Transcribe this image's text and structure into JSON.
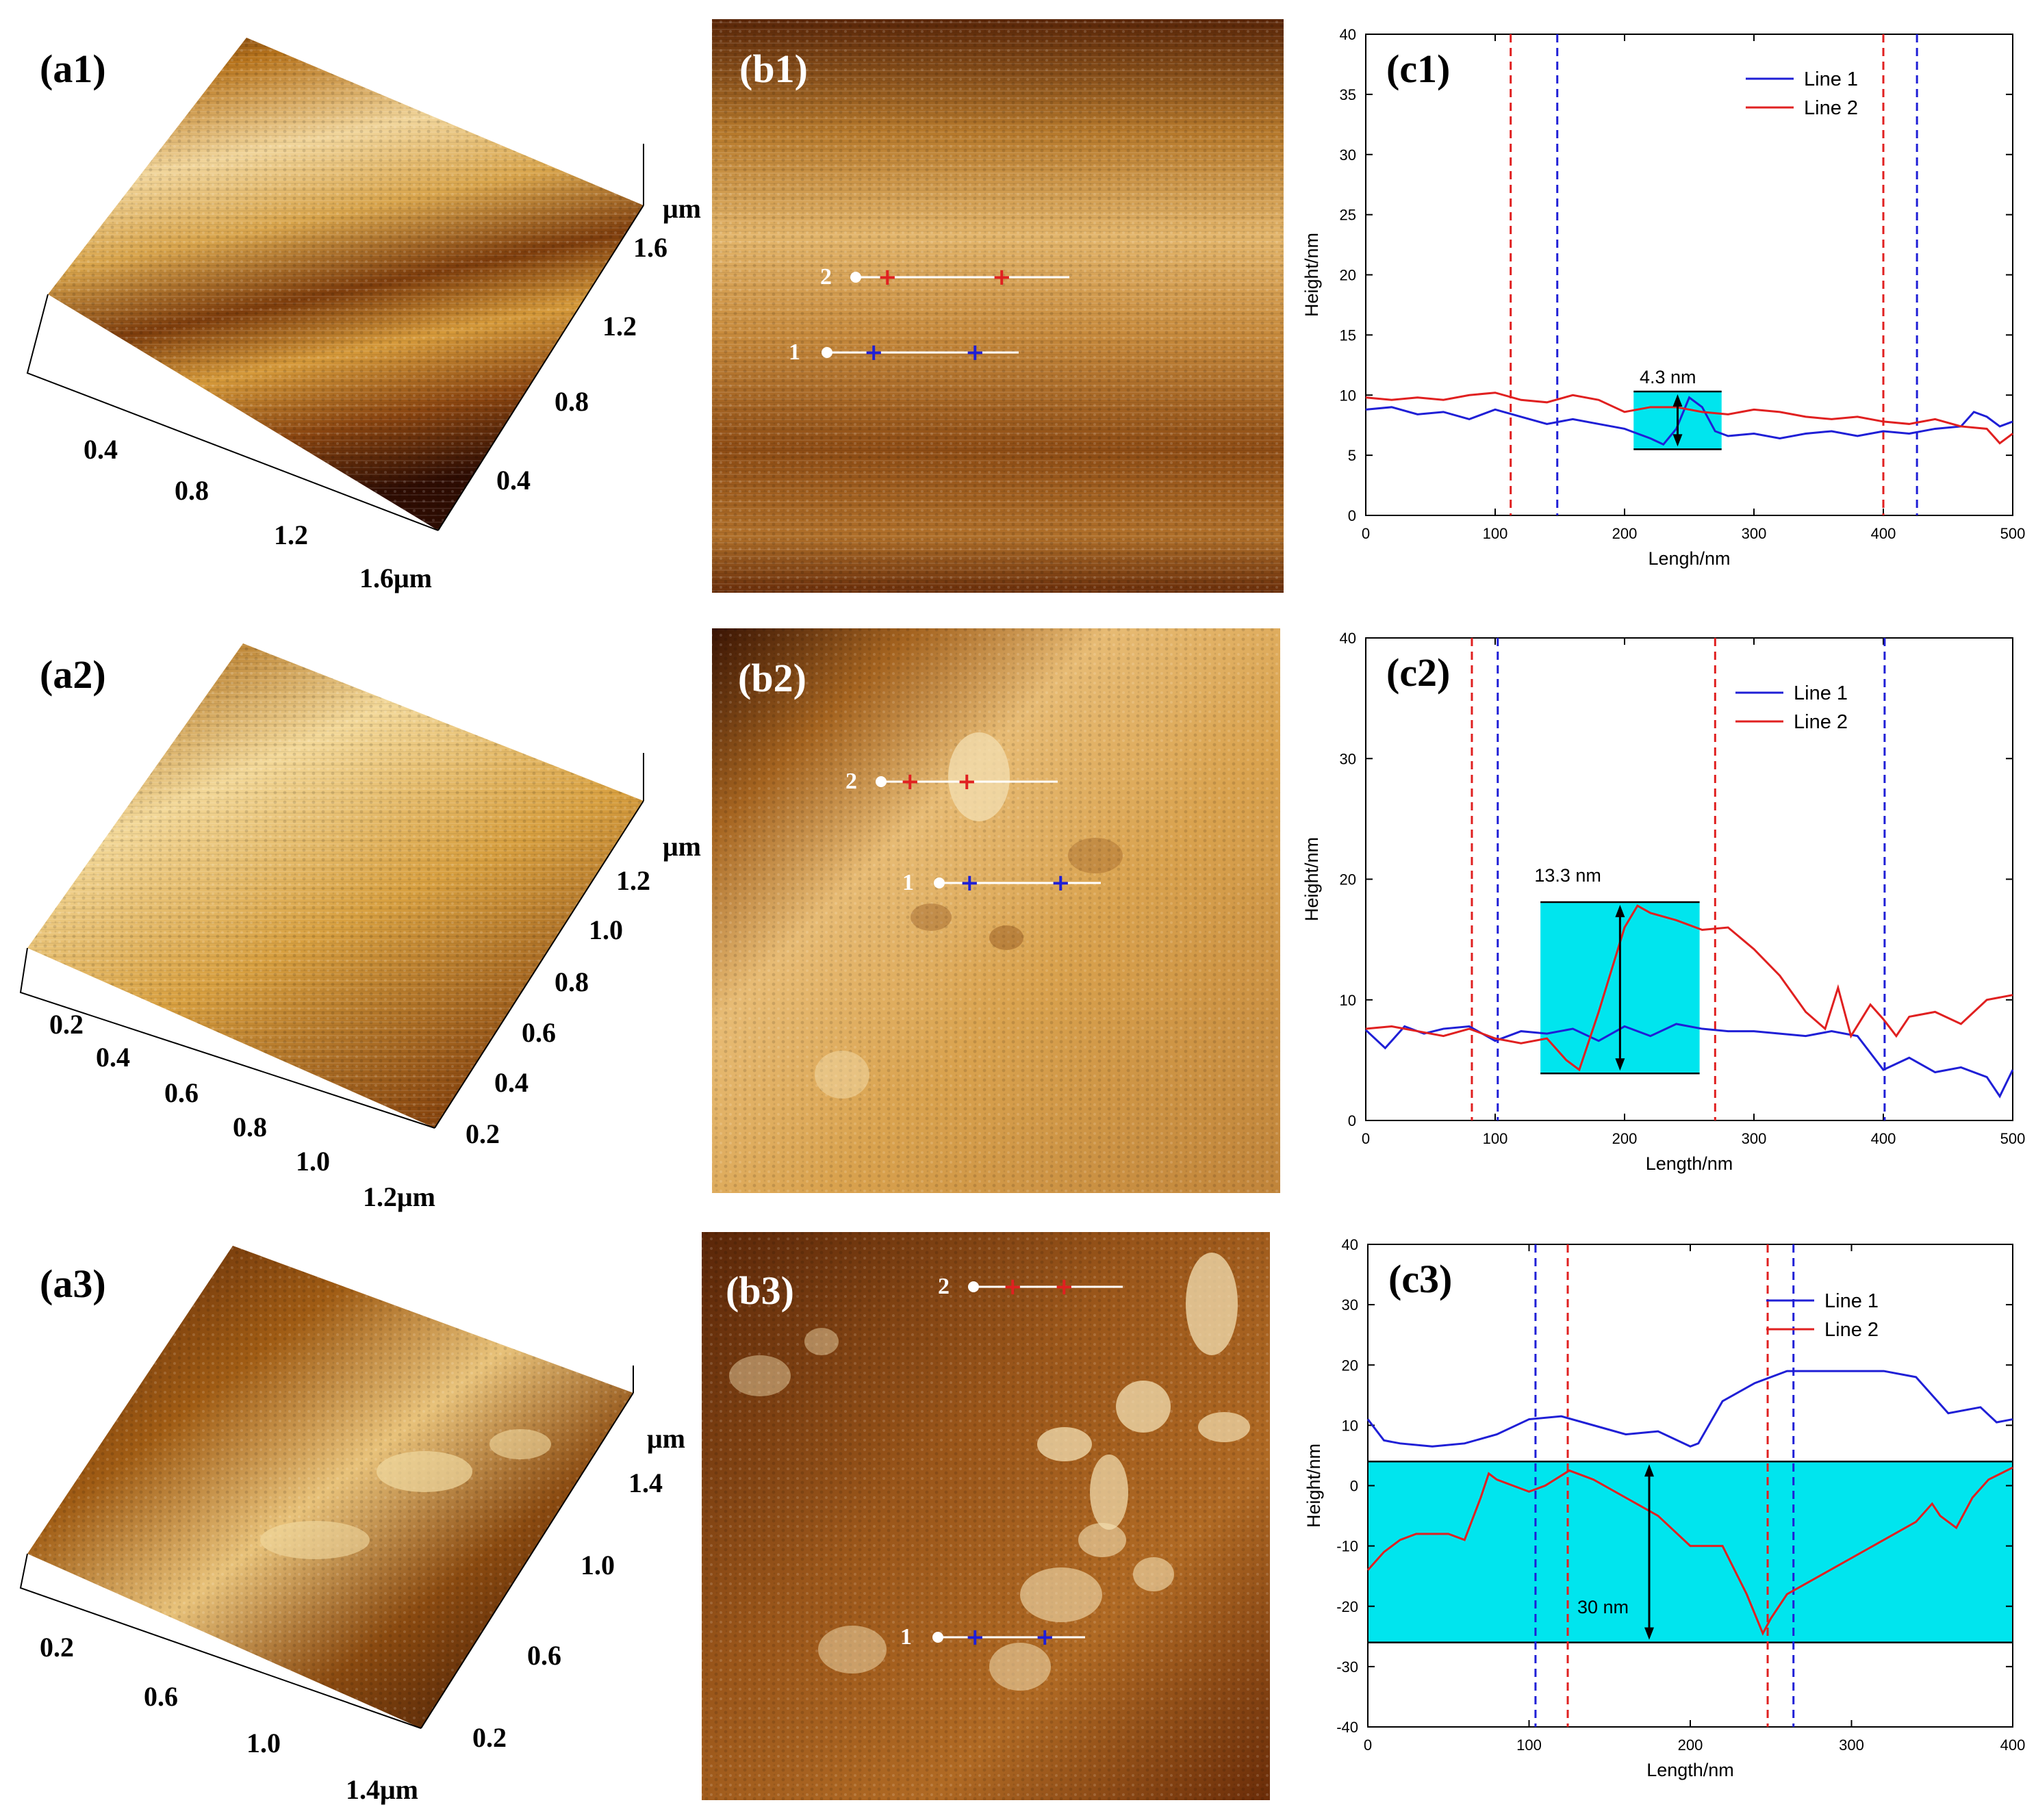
{
  "panels": {
    "a1": {
      "label": "(a1)",
      "x_ticks": [
        "0.4",
        "0.8",
        "1.2",
        "1.6μm"
      ],
      "y_ticks": [
        "0.4",
        "0.8",
        "1.2",
        "1.6"
      ],
      "z_unit": "μm"
    },
    "a2": {
      "label": "(a2)",
      "x_ticks": [
        "0.2",
        "0.4",
        "0.6",
        "0.8",
        "1.0",
        "1.2μm"
      ],
      "y_ticks": [
        "0.2",
        "0.4",
        "0.6",
        "0.8",
        "1.0",
        "1.2"
      ],
      "z_unit": "μm"
    },
    "a3": {
      "label": "(a3)",
      "x_ticks": [
        "0.2",
        "0.6",
        "1.0",
        "1.4μm"
      ],
      "y_ticks": [
        "0.2",
        "0.6",
        "1.0",
        "1.4"
      ],
      "z_unit": "μm"
    },
    "b1": {
      "label": "(b1)",
      "line1": "1",
      "line2": "2"
    },
    "b2": {
      "label": "(b2)",
      "line1": "1",
      "line2": "2"
    },
    "b3": {
      "label": "(b3)",
      "line1": "1",
      "line2": "2"
    }
  },
  "colors": {
    "line1": "#1f1fd6",
    "line2": "#e02020",
    "highlight": "#00e5ee"
  },
  "chart_data": [
    {
      "id": "c1",
      "type": "line",
      "label": "(c1)",
      "xlabel": "Lengh/nm",
      "ylabel": "Height/nm",
      "xlim": [
        0,
        500
      ],
      "ylim": [
        0,
        40
      ],
      "xticks": [
        0,
        100,
        200,
        300,
        400,
        500
      ],
      "yticks": [
        0,
        5,
        10,
        15,
        20,
        25,
        30,
        35,
        40
      ],
      "legend": [
        "Line 1",
        "Line 2"
      ],
      "series": [
        {
          "name": "Line 1",
          "x": [
            0,
            20,
            40,
            60,
            80,
            100,
            120,
            140,
            160,
            180,
            200,
            210,
            220,
            230,
            240,
            250,
            260,
            270,
            280,
            300,
            320,
            340,
            360,
            380,
            400,
            420,
            440,
            460,
            470,
            480,
            490,
            500
          ],
          "values": [
            8.8,
            9.0,
            8.4,
            8.6,
            8.0,
            8.8,
            8.2,
            7.6,
            8.0,
            7.6,
            7.2,
            6.8,
            6.4,
            5.9,
            7.2,
            9.8,
            9.0,
            7.0,
            6.6,
            6.8,
            6.4,
            6.8,
            7.0,
            6.6,
            7.0,
            6.8,
            7.2,
            7.4,
            8.6,
            8.2,
            7.4,
            7.8
          ]
        },
        {
          "name": "Line 2",
          "x": [
            0,
            20,
            40,
            60,
            80,
            100,
            120,
            140,
            160,
            180,
            200,
            220,
            240,
            260,
            280,
            300,
            320,
            340,
            360,
            380,
            400,
            420,
            440,
            460,
            480,
            490,
            500
          ],
          "values": [
            9.8,
            9.6,
            9.8,
            9.6,
            10.0,
            10.2,
            9.6,
            9.4,
            10.0,
            9.6,
            8.6,
            9.0,
            9.0,
            8.6,
            8.4,
            8.8,
            8.6,
            8.2,
            8.0,
            8.2,
            7.8,
            7.6,
            8.0,
            7.4,
            7.2,
            6.0,
            6.8
          ]
        }
      ],
      "markers": [
        {
          "x": 112,
          "series": "Line 2"
        },
        {
          "x": 148,
          "series": "Line 1"
        },
        {
          "x": 400,
          "series": "Line 2"
        },
        {
          "x": 426,
          "series": "Line 1"
        }
      ],
      "annotation": {
        "text": "4.3 nm",
        "box_x": [
          207,
          275
        ],
        "box_y": [
          5.5,
          10.3
        ]
      }
    },
    {
      "id": "c2",
      "type": "line",
      "label": "(c2)",
      "xlabel": "Length/nm",
      "ylabel": "Height/nm",
      "xlim": [
        0,
        500
      ],
      "ylim": [
        0,
        40
      ],
      "xticks": [
        0,
        100,
        200,
        300,
        400,
        500
      ],
      "yticks": [
        0,
        10,
        20,
        30,
        40
      ],
      "legend": [
        "Line 1",
        "Line 2"
      ],
      "series": [
        {
          "name": "Line 1",
          "x": [
            0,
            15,
            30,
            45,
            60,
            80,
            100,
            120,
            140,
            160,
            180,
            200,
            220,
            240,
            260,
            280,
            300,
            320,
            340,
            360,
            380,
            400,
            420,
            440,
            460,
            480,
            490,
            500
          ],
          "values": [
            7.5,
            6.0,
            7.8,
            7.2,
            7.6,
            7.8,
            6.6,
            7.4,
            7.2,
            7.6,
            6.6,
            7.8,
            7.0,
            8.0,
            7.6,
            7.4,
            7.4,
            7.2,
            7.0,
            7.4,
            7.0,
            4.2,
            5.2,
            4.0,
            4.4,
            3.6,
            2.0,
            4.2
          ]
        },
        {
          "name": "Line 2",
          "x": [
            0,
            20,
            40,
            60,
            80,
            100,
            120,
            140,
            155,
            165,
            180,
            200,
            210,
            220,
            240,
            260,
            280,
            300,
            320,
            340,
            355,
            365,
            375,
            390,
            400,
            410,
            420,
            440,
            460,
            480,
            500
          ],
          "values": [
            7.6,
            7.8,
            7.4,
            7.0,
            7.6,
            6.8,
            6.4,
            6.8,
            5.0,
            4.2,
            9.0,
            16.0,
            17.8,
            17.2,
            16.6,
            15.8,
            16.0,
            14.2,
            12.0,
            9.0,
            7.6,
            11.0,
            7.0,
            9.6,
            8.4,
            7.0,
            8.6,
            9.0,
            8.0,
            10.0,
            10.4
          ]
        }
      ],
      "markers": [
        {
          "x": 82,
          "series": "Line 2"
        },
        {
          "x": 102,
          "series": "Line 1"
        },
        {
          "x": 270,
          "series": "Line 2"
        },
        {
          "x": 401,
          "series": "Line 1"
        }
      ],
      "annotation": {
        "text": "13.3 nm",
        "box_x": [
          135,
          258
        ],
        "box_y": [
          3.9,
          18.1
        ]
      }
    },
    {
      "id": "c3",
      "type": "line",
      "label": "(c3)",
      "xlabel": "Length/nm",
      "ylabel": "Height/nm",
      "xlim": [
        0,
        400
      ],
      "ylim": [
        -40,
        40
      ],
      "xticks": [
        0,
        100,
        200,
        300,
        400
      ],
      "yticks": [
        -40,
        -30,
        -20,
        -10,
        0,
        10,
        20,
        30,
        40
      ],
      "legend": [
        "Line 1",
        "Line 2"
      ],
      "series": [
        {
          "name": "Line 1",
          "x": [
            0,
            10,
            20,
            40,
            60,
            80,
            100,
            120,
            140,
            160,
            180,
            200,
            205,
            220,
            240,
            260,
            280,
            300,
            320,
            340,
            360,
            380,
            390,
            400
          ],
          "values": [
            11,
            7.5,
            7,
            6.5,
            7,
            8.5,
            11,
            11.5,
            10,
            8.5,
            9,
            6.5,
            7,
            14,
            17,
            19,
            19,
            19,
            19,
            18,
            12,
            13,
            10.5,
            11
          ]
        },
        {
          "name": "Line 2",
          "x": [
            0,
            10,
            20,
            30,
            40,
            50,
            60,
            70,
            75,
            80,
            90,
            100,
            110,
            125,
            140,
            160,
            180,
            200,
            220,
            235,
            245,
            250,
            260,
            280,
            300,
            320,
            340,
            350,
            355,
            365,
            375,
            385,
            400
          ],
          "values": [
            -14,
            -11,
            -9,
            -8,
            -8,
            -8,
            -9,
            -2,
            2,
            1,
            0,
            -1,
            0,
            2.5,
            1,
            -2,
            -5,
            -10,
            -10,
            -18,
            -24.5,
            -22,
            -18,
            -15,
            -12,
            -9,
            -6,
            -3,
            -5,
            -7,
            -2,
            1,
            3
          ]
        }
      ],
      "markers": [
        {
          "x": 104,
          "series": "Line 1"
        },
        {
          "x": 124,
          "series": "Line 2"
        },
        {
          "x": 248,
          "series": "Line 2"
        },
        {
          "x": 264,
          "series": "Line 1"
        }
      ],
      "annotation": {
        "text": "30 nm",
        "box_x": [
          0,
          400
        ],
        "box_y": [
          -26,
          4
        ]
      }
    }
  ]
}
